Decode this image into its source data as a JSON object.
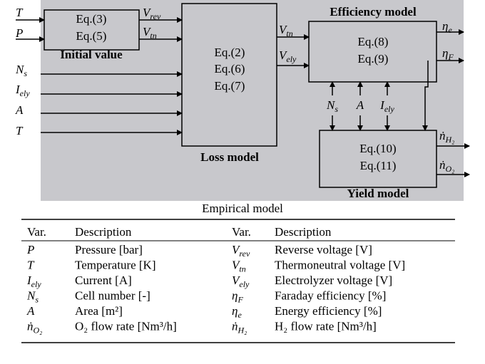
{
  "diagram": {
    "inputs": [
      {
        "base": "T"
      },
      {
        "base": "P"
      },
      {
        "base": "N",
        "sub": "s"
      },
      {
        "base": "I",
        "sub": "ely"
      },
      {
        "base": "A"
      },
      {
        "base": "T"
      }
    ],
    "blocks": [
      {
        "title": "Initial value",
        "equations": [
          "Eq.(3)",
          "Eq.(5)"
        ]
      },
      {
        "title": "Loss model",
        "equations": [
          "Eq.(2)",
          "Eq.(6)",
          "Eq.(7)"
        ]
      },
      {
        "title": "Efficiency model",
        "equations": [
          "Eq.(8)",
          "Eq.(9)"
        ]
      },
      {
        "title": "Yield model",
        "equations": [
          "Eq.(10)",
          "Eq.(11)"
        ]
      }
    ],
    "initial_to_loss": [
      {
        "base": "V",
        "sub": "rev"
      },
      {
        "base": "V",
        "sub": "tn"
      }
    ],
    "loss_to_efficiency": [
      {
        "base": "V",
        "sub": "tn"
      },
      {
        "base": "V",
        "sub": "ely"
      }
    ],
    "efficiency_yield_links": [
      {
        "base": "N",
        "sub": "s"
      },
      {
        "base": "A"
      },
      {
        "base": "I",
        "sub": "ely"
      }
    ],
    "efficiency_outputs": [
      {
        "base": "η",
        "sub": "e"
      },
      {
        "base": "η",
        "sub": "F"
      }
    ],
    "yield_outputs": [
      {
        "base": "ṅ",
        "sub": "H₂"
      },
      {
        "base": "ṅ",
        "sub": "O₂"
      }
    ]
  },
  "caption": "Empirical model",
  "table": {
    "header": [
      "Var.",
      "Description",
      "Var.",
      "Description"
    ],
    "rows": [
      [
        {
          "base": "P"
        },
        "Pressure [bar]",
        {
          "base": "V",
          "sub": "rev"
        },
        "Reverse voltage [V]"
      ],
      [
        {
          "base": "T"
        },
        "Temperature [K]",
        {
          "base": "V",
          "sub": "tn"
        },
        "Thermoneutral voltage [V]"
      ],
      [
        {
          "base": "I",
          "sub": "ely"
        },
        "Current [A]",
        {
          "base": "V",
          "sub": "ely"
        },
        "Electrolyzer voltage [V]"
      ],
      [
        {
          "base": "N",
          "sub": "s"
        },
        "Cell number [-]",
        {
          "base": "η",
          "sub": "F"
        },
        "Faraday efficiency [%]"
      ],
      [
        {
          "base": "A"
        },
        "Area [m²]",
        {
          "base": "η",
          "sub": "e"
        },
        "Energy efficiency [%]"
      ],
      [
        {
          "base": "ṅ",
          "sub": "O₂"
        },
        "O₂ flow rate [Nm³/h]",
        {
          "base": "ṅ",
          "sub": "H₂"
        },
        "H₂ flow rate [Nm³/h]"
      ]
    ]
  }
}
